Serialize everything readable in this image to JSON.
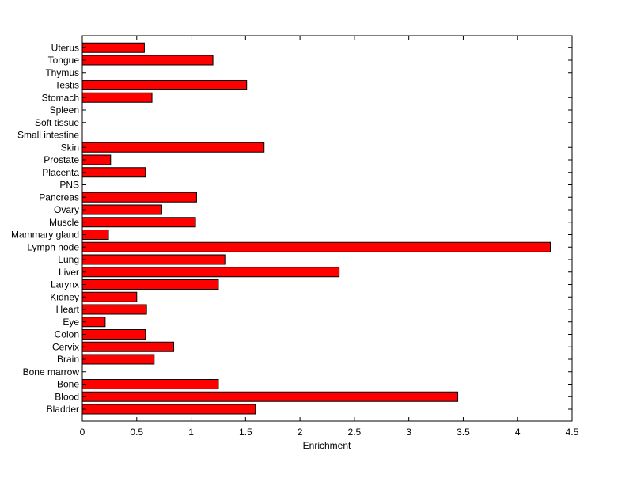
{
  "chart_data": {
    "type": "bar",
    "orientation": "horizontal",
    "title": "",
    "xlabel": "Enrichment",
    "ylabel": "",
    "xlim": [
      0,
      4.5
    ],
    "xticks": [
      0,
      0.5,
      1,
      1.5,
      2,
      2.5,
      3,
      3.5,
      4,
      4.5
    ],
    "xtick_labels": [
      "0",
      "0.5",
      "1",
      "1.5",
      "2",
      "2.5",
      "3",
      "3.5",
      "4",
      "4.5"
    ],
    "grid": false,
    "bar_color": "#ff0000",
    "categories": [
      "Bladder",
      "Blood",
      "Bone",
      "Bone marrow",
      "Brain",
      "Cervix",
      "Colon",
      "Eye",
      "Heart",
      "Kidney",
      "Larynx",
      "Liver",
      "Lung",
      "Lymph node",
      "Mammary gland",
      "Muscle",
      "Ovary",
      "Pancreas",
      "PNS",
      "Placenta",
      "Prostate",
      "Skin",
      "Small intestine",
      "Soft tissue",
      "Spleen",
      "Stomach",
      "Testis",
      "Thymus",
      "Tongue",
      "Uterus"
    ],
    "values": [
      1.59,
      3.45,
      1.25,
      0,
      0.66,
      0.84,
      0.58,
      0.21,
      0.59,
      0.5,
      1.25,
      2.36,
      1.31,
      4.3,
      0.24,
      1.04,
      0.73,
      1.05,
      0,
      0.58,
      0.26,
      1.67,
      0,
      0,
      0,
      0.64,
      1.51,
      0,
      1.2,
      0.57
    ]
  }
}
